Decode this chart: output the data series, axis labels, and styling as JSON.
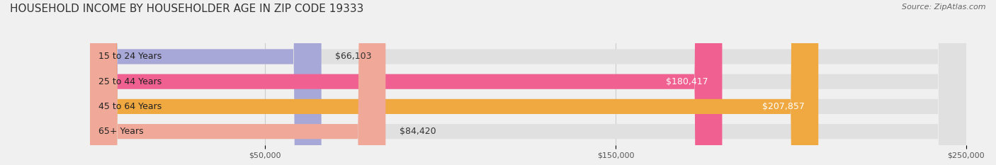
{
  "title": "HOUSEHOLD INCOME BY HOUSEHOLDER AGE IN ZIP CODE 19333",
  "source": "Source: ZipAtlas.com",
  "categories": [
    "15 to 24 Years",
    "25 to 44 Years",
    "45 to 64 Years",
    "65+ Years"
  ],
  "values": [
    66103,
    180417,
    207857,
    84420
  ],
  "bar_colors": [
    "#a8a8d8",
    "#f06090",
    "#f0a840",
    "#f0a898"
  ],
  "label_colors": [
    "#404040",
    "#ffffff",
    "#ffffff",
    "#404040"
  ],
  "background_color": "#f0f0f0",
  "bar_bg_color": "#e0e0e0",
  "xlim": [
    0,
    250000
  ],
  "xticks": [
    50000,
    150000,
    250000
  ],
  "xtick_labels": [
    "$50,000",
    "$150,000",
    "$250,000"
  ],
  "title_fontsize": 11,
  "source_fontsize": 8,
  "label_fontsize": 9,
  "tick_fontsize": 8,
  "bar_height": 0.58,
  "figsize": [
    14.06,
    2.33
  ],
  "dpi": 100
}
